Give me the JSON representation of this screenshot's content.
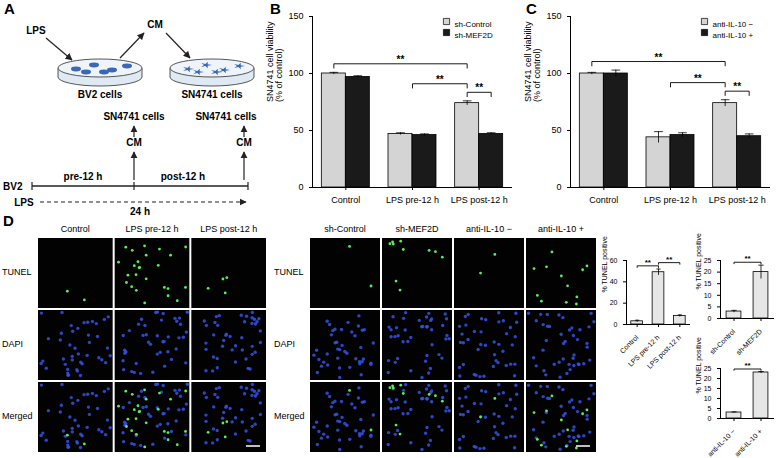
{
  "diagram": {
    "panel": "A",
    "stimulus": "LPS",
    "medium": "CM",
    "source_cells": "BV2 cells",
    "target_cells": "SN4741 cells",
    "timeline_cell": "BV2",
    "phases": [
      "pre-12 h",
      "post-12 h"
    ],
    "duration": "24 h"
  },
  "images": {
    "panel": "D",
    "row_labels": [
      "TUNEL",
      "DAPI",
      "Merged"
    ],
    "groups": [
      [
        "Control",
        "LPS pre-12 h",
        "LPS post-12 h"
      ],
      [
        "sh-Control",
        "sh-MEF2D",
        "anti-IL-10 −",
        "anti-IL-10 +"
      ]
    ]
  },
  "chart_data": [
    {
      "type": "bar",
      "panel": "B",
      "categories": [
        "Control",
        "LPS pre-12 h",
        "LPS post-12 h"
      ],
      "series": [
        {
          "name": "sh-Control",
          "color": "#d4d4d4",
          "values": [
            100,
            47,
            74
          ],
          "errors": [
            1,
            1,
            2
          ]
        },
        {
          "name": "sh-MEF2D",
          "color": "#1a1a1a",
          "values": [
            97,
            46,
            47
          ],
          "errors": [
            1,
            1,
            1
          ]
        }
      ],
      "y_label": "SN4741 cell viability\n(% of control)",
      "ylim": [
        0,
        150
      ],
      "yticks": [
        0,
        50,
        100,
        150
      ],
      "legend": "top-right",
      "significance": [
        {
          "from": [
            "Control",
            "sh-Control"
          ],
          "to": [
            "LPS post-12 h",
            "sh-Control"
          ],
          "label": "**"
        },
        {
          "from": [
            "LPS pre-12 h",
            null
          ],
          "to": [
            "LPS post-12 h",
            "sh-Control"
          ],
          "label": "**"
        },
        {
          "from": [
            "LPS post-12 h",
            "sh-Control"
          ],
          "to": [
            "LPS post-12 h",
            "sh-MEF2D"
          ],
          "label": "**"
        }
      ]
    },
    {
      "type": "bar",
      "panel": "C",
      "categories": [
        "Control",
        "LPS pre-12 h",
        "LPS post-12 h"
      ],
      "series": [
        {
          "name": "anti-IL-10 −",
          "color": "#d4d4d4",
          "values": [
            100,
            44,
            74
          ],
          "errors": [
            1,
            5,
            3
          ]
        },
        {
          "name": "anti-IL-10 +",
          "color": "#1a1a1a",
          "values": [
            100,
            46,
            45
          ],
          "errors": [
            3,
            2,
            2
          ]
        }
      ],
      "y_label": "SN4741 cell viability\n(% of control)",
      "ylim": [
        0,
        150
      ],
      "yticks": [
        0,
        50,
        100,
        150
      ],
      "legend": "top-right",
      "significance": [
        {
          "from": [
            "Control",
            "anti-IL-10 −"
          ],
          "to": [
            "LPS post-12 h",
            "anti-IL-10 −"
          ],
          "label": "**"
        },
        {
          "from": [
            "LPS pre-12 h",
            null
          ],
          "to": [
            "LPS post-12 h",
            "anti-IL-10 −"
          ],
          "label": "**"
        },
        {
          "from": [
            "LPS post-12 h",
            "anti-IL-10 −"
          ],
          "to": [
            "LPS post-12 h",
            "anti-IL-10 +"
          ],
          "label": "**"
        }
      ]
    },
    {
      "type": "bar",
      "categories": [
        "Control",
        "LPS pre-12 h",
        "LPS post-12 h"
      ],
      "values": [
        3,
        49,
        8
      ],
      "errors": [
        1,
        3,
        1
      ],
      "color": "#e6e6e6",
      "y_label": "% TUNEL positive",
      "ylim": [
        0,
        60
      ],
      "yticks": [
        0,
        20,
        40,
        60
      ],
      "significance": [
        {
          "from": [
            "Control",
            null
          ],
          "to": [
            "LPS pre-12 h",
            null
          ],
          "label": "**"
        },
        {
          "from": [
            "LPS pre-12 h",
            null
          ],
          "to": [
            "LPS post-12 h",
            null
          ],
          "label": "**"
        }
      ]
    },
    {
      "type": "bar",
      "categories": [
        "sh-Control",
        "sh-MEF2D"
      ],
      "values": [
        3,
        20
      ],
      "errors": [
        0.5,
        3
      ],
      "color": "#e6e6e6",
      "y_label": "% TUNEL positive",
      "ylim": [
        0,
        25
      ],
      "yticks": [
        0,
        5,
        10,
        15,
        20,
        25
      ],
      "significance": [
        {
          "from": [
            "sh-Control",
            null
          ],
          "to": [
            "sh-MEF2D",
            null
          ],
          "label": "**"
        }
      ]
    },
    {
      "type": "bar",
      "categories": [
        "anti-IL-10 −",
        "anti-IL-10 +"
      ],
      "values": [
        3,
        23
      ],
      "errors": [
        0.3,
        0.5
      ],
      "color": "#e6e6e6",
      "y_label": "% TUNEL positive",
      "ylim": [
        0,
        25
      ],
      "yticks": [
        0,
        5,
        10,
        15,
        20,
        25
      ],
      "significance": [
        {
          "from": [
            "anti-IL-10 −",
            null
          ],
          "to": [
            "anti-IL-10 +",
            null
          ],
          "label": "**"
        }
      ]
    }
  ]
}
